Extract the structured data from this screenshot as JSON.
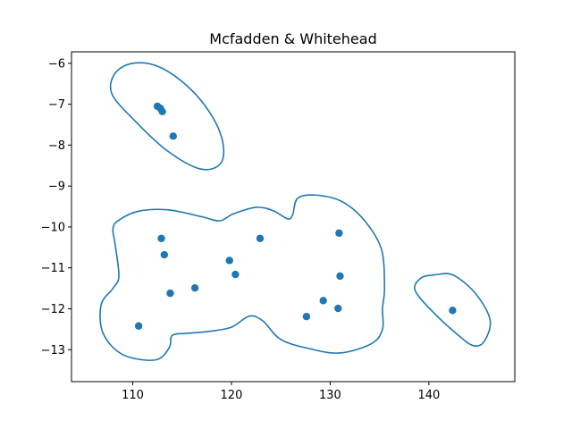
{
  "chart_data": {
    "type": "scatter",
    "title": "Mcfadden & Whitehead",
    "xlabel": "",
    "ylabel": "",
    "xlim": [
      103.8,
      148.7
    ],
    "ylim": [
      -13.78,
      -5.72
    ],
    "xticks": [
      110,
      120,
      130,
      140
    ],
    "yticks": [
      -13,
      -12,
      -11,
      -10,
      -9,
      -8,
      -7,
      -6
    ],
    "grid": false,
    "legend": false,
    "color": "#1f77b4",
    "points": [
      {
        "x": 112.5,
        "y": -7.05
      },
      {
        "x": 112.8,
        "y": -7.1
      },
      {
        "x": 113.0,
        "y": -7.18
      },
      {
        "x": 114.1,
        "y": -7.78
      },
      {
        "x": 110.6,
        "y": -12.42
      },
      {
        "x": 112.9,
        "y": -10.28
      },
      {
        "x": 113.2,
        "y": -10.68
      },
      {
        "x": 113.8,
        "y": -11.62
      },
      {
        "x": 116.3,
        "y": -11.49
      },
      {
        "x": 119.8,
        "y": -10.82
      },
      {
        "x": 120.4,
        "y": -11.16
      },
      {
        "x": 122.9,
        "y": -10.28
      },
      {
        "x": 127.6,
        "y": -12.19
      },
      {
        "x": 129.3,
        "y": -11.8
      },
      {
        "x": 130.8,
        "y": -11.99
      },
      {
        "x": 130.9,
        "y": -10.15
      },
      {
        "x": 131.0,
        "y": -11.2
      },
      {
        "x": 142.4,
        "y": -12.04
      }
    ],
    "contours": [
      [
        [
          110.0,
          -6.0
        ],
        [
          112.6,
          -6.08
        ],
        [
          115.5,
          -6.55
        ],
        [
          117.8,
          -7.2
        ],
        [
          119.1,
          -7.9
        ],
        [
          118.9,
          -8.45
        ],
        [
          116.8,
          -8.58
        ],
        [
          113.4,
          -8.12
        ],
        [
          110.2,
          -7.4
        ],
        [
          107.9,
          -6.75
        ],
        [
          108.2,
          -6.25
        ],
        [
          110.0,
          -6.0
        ]
      ],
      [
        [
          110.5,
          -9.62
        ],
        [
          113.5,
          -9.58
        ],
        [
          117.0,
          -9.75
        ],
        [
          118.8,
          -9.85
        ],
        [
          120.2,
          -9.68
        ],
        [
          122.5,
          -9.52
        ],
        [
          124.2,
          -9.6
        ],
        [
          125.7,
          -9.8
        ],
        [
          126.2,
          -9.7
        ],
        [
          126.7,
          -9.3
        ],
        [
          128.5,
          -9.22
        ],
        [
          131.2,
          -9.38
        ],
        [
          133.5,
          -9.85
        ],
        [
          135.2,
          -10.55
        ],
        [
          135.5,
          -11.5
        ],
        [
          135.3,
          -12.0
        ],
        [
          135.3,
          -12.5
        ],
        [
          134.2,
          -12.85
        ],
        [
          131.0,
          -13.08
        ],
        [
          128.0,
          -12.98
        ],
        [
          125.0,
          -12.75
        ],
        [
          123.2,
          -12.3
        ],
        [
          121.8,
          -12.18
        ],
        [
          120.0,
          -12.45
        ],
        [
          117.8,
          -12.55
        ],
        [
          115.5,
          -12.6
        ],
        [
          114.0,
          -12.65
        ],
        [
          113.7,
          -12.95
        ],
        [
          112.3,
          -13.25
        ],
        [
          109.0,
          -13.12
        ],
        [
          107.0,
          -12.6
        ],
        [
          106.8,
          -11.9
        ],
        [
          108.0,
          -11.5
        ],
        [
          108.6,
          -11.2
        ],
        [
          108.2,
          -10.4
        ],
        [
          108.0,
          -10.05
        ],
        [
          108.5,
          -9.85
        ],
        [
          110.5,
          -9.62
        ]
      ],
      [
        [
          140.6,
          -11.17
        ],
        [
          142.5,
          -11.18
        ],
        [
          144.8,
          -11.65
        ],
        [
          146.2,
          -12.28
        ],
        [
          145.6,
          -12.8
        ],
        [
          144.5,
          -12.9
        ],
        [
          143.0,
          -12.65
        ],
        [
          140.5,
          -12.1
        ],
        [
          138.6,
          -11.55
        ],
        [
          139.2,
          -11.25
        ],
        [
          140.6,
          -11.17
        ]
      ]
    ]
  }
}
